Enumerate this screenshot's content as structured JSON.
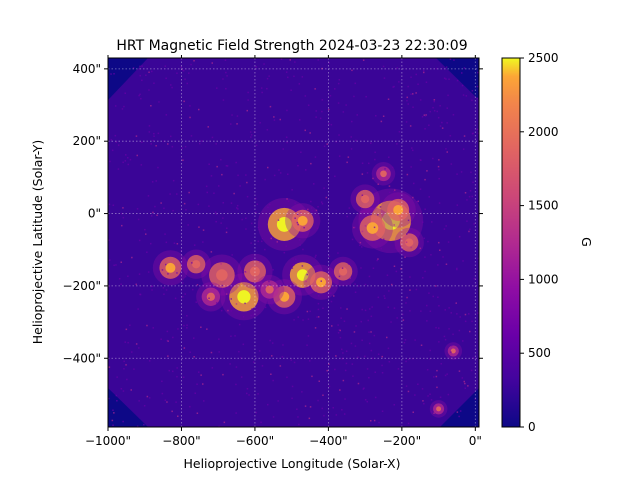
{
  "chart_data": {
    "type": "heatmap",
    "title": "HRT Magnetic Field Strength 2024-03-23 22:30:09",
    "xlabel": "Helioprojective Longitude (Solar-X)",
    "ylabel": "Helioprojective Latitude (Solar-Y)",
    "xlim": [
      -1000,
      10
    ],
    "ylim": [
      -590,
      430
    ],
    "x_ticks": [
      -1000,
      -800,
      -600,
      -400,
      -200,
      0
    ],
    "x_tick_labels": [
      "−1000\"",
      "−800\"",
      "−600\"",
      "−400\"",
      "−200\"",
      "0\""
    ],
    "y_ticks": [
      400,
      200,
      0,
      -200,
      -400
    ],
    "y_tick_labels": [
      "400\"",
      "200\"",
      "0\"",
      "−200\"",
      "−400\""
    ],
    "grid": true,
    "colormap": "plasma",
    "colorbar": {
      "label": "G",
      "range": [
        0,
        2500
      ],
      "ticks": [
        0,
        500,
        1000,
        1500,
        2000,
        2500
      ],
      "tick_labels": [
        "0",
        "500",
        "1000",
        "1500",
        "2000",
        "2500"
      ]
    },
    "strong_field_regions": [
      {
        "x": -520,
        "y": -30,
        "peak": 2300,
        "radius": 45
      },
      {
        "x": -470,
        "y": -20,
        "peak": 1900,
        "radius": 30
      },
      {
        "x": -230,
        "y": -20,
        "peak": 2400,
        "radius": 55
      },
      {
        "x": -280,
        "y": -40,
        "peak": 2000,
        "radius": 35
      },
      {
        "x": -210,
        "y": 10,
        "peak": 1800,
        "radius": 30
      },
      {
        "x": -180,
        "y": -80,
        "peak": 1700,
        "radius": 25
      },
      {
        "x": -300,
        "y": 40,
        "peak": 1600,
        "radius": 25
      },
      {
        "x": -630,
        "y": -230,
        "peak": 2500,
        "radius": 40
      },
      {
        "x": -600,
        "y": -160,
        "peak": 1700,
        "radius": 30
      },
      {
        "x": -690,
        "y": -170,
        "peak": 1600,
        "radius": 35
      },
      {
        "x": -470,
        "y": -170,
        "peak": 2200,
        "radius": 35
      },
      {
        "x": -420,
        "y": -190,
        "peak": 1800,
        "radius": 30
      },
      {
        "x": -830,
        "y": -150,
        "peak": 1900,
        "radius": 30
      },
      {
        "x": -760,
        "y": -140,
        "peak": 1600,
        "radius": 25
      },
      {
        "x": -520,
        "y": -230,
        "peak": 1800,
        "radius": 30
      },
      {
        "x": -360,
        "y": -160,
        "peak": 1700,
        "radius": 25
      },
      {
        "x": -560,
        "y": -210,
        "peak": 1500,
        "radius": 25
      },
      {
        "x": -720,
        "y": -230,
        "peak": 1500,
        "radius": 25
      },
      {
        "x": -250,
        "y": 110,
        "peak": 1500,
        "radius": 20
      },
      {
        "x": -60,
        "y": -380,
        "peak": 1400,
        "radius": 15
      },
      {
        "x": -100,
        "y": -540,
        "peak": 1300,
        "radius": 15
      }
    ]
  }
}
